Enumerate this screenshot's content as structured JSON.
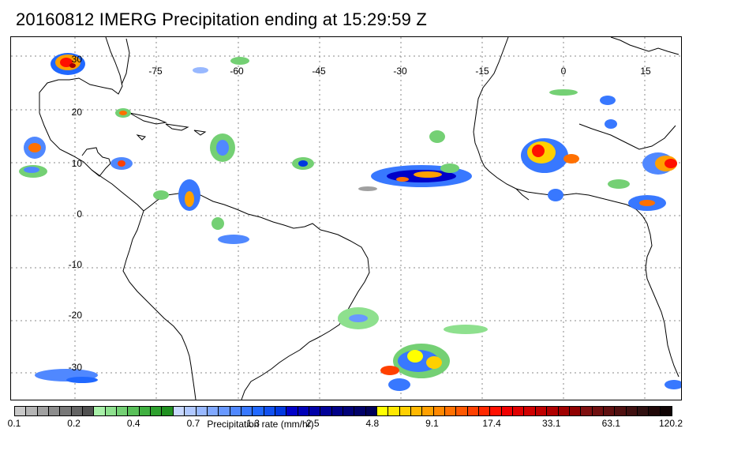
{
  "title": "20160812 IMERG Precipitation ending at 15:29:59 Z",
  "map": {
    "lon_labels": [
      "-75",
      "-60",
      "-45",
      "-30",
      "-15",
      "0",
      "15"
    ],
    "lat_labels": [
      "30",
      "20",
      "10",
      "0",
      "-10",
      "-20",
      "-30"
    ],
    "coastline_color": "#000000",
    "grid_color": "#888888"
  },
  "legend": {
    "colors": [
      "#c8c8c8",
      "#b4b4b4",
      "#a0a0a0",
      "#8c8c8c",
      "#787878",
      "#646464",
      "#505050",
      "#a8f0a8",
      "#8ee08e",
      "#74d074",
      "#5ac05a",
      "#40b040",
      "#2ea02e",
      "#209020",
      "#c8d8ff",
      "#b0c8ff",
      "#98b8ff",
      "#80a8ff",
      "#6898ff",
      "#5088ff",
      "#3878ff",
      "#2068ff",
      "#1050f0",
      "#0038e0",
      "#0000c8",
      "#0000b8",
      "#0000a8",
      "#000098",
      "#000088",
      "#000078",
      "#000068",
      "#000058",
      "#ffff00",
      "#ffe800",
      "#ffd000",
      "#ffb800",
      "#ffa000",
      "#ff8800",
      "#ff7000",
      "#ff5800",
      "#ff4000",
      "#ff2800",
      "#ff1000",
      "#f00000",
      "#e00000",
      "#d00000",
      "#c00000",
      "#b00000",
      "#a00000",
      "#900000",
      "#801010",
      "#701010",
      "#601010",
      "#501010",
      "#401010",
      "#301010",
      "#200808",
      "#100404"
    ],
    "ticks": [
      "0.1",
      "0.2",
      "0.4",
      "0.7",
      "1.3",
      "2.5",
      "4.8",
      "9.1",
      "17.4",
      "33.1",
      "63.1",
      "120.2"
    ],
    "label": "Precipitation rate (mm/hr)"
  }
}
